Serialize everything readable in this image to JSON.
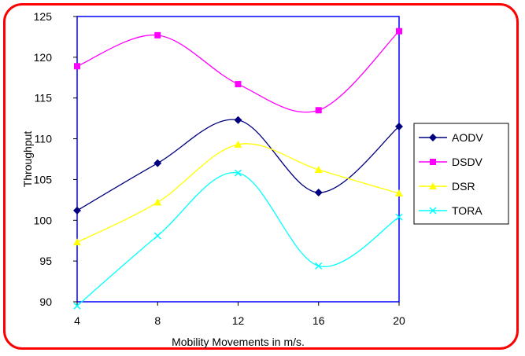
{
  "chart_data": {
    "type": "line",
    "title": "",
    "xlabel": "Mobility Movements in m/s.",
    "ylabel": "Throughput",
    "x": [
      4,
      8,
      12,
      16,
      20
    ],
    "xlim": [
      4,
      20
    ],
    "ylim": [
      90,
      125
    ],
    "yticks": [
      90,
      95,
      100,
      105,
      110,
      115,
      120,
      125
    ],
    "grid": false,
    "legend_position": "right",
    "series": [
      {
        "name": "AODV",
        "color": "#000080",
        "marker": "diamond",
        "values": [
          101.2,
          107.0,
          112.3,
          103.4,
          111.5
        ]
      },
      {
        "name": "DSDV",
        "color": "#ff00ff",
        "marker": "square",
        "values": [
          118.9,
          122.7,
          116.7,
          113.5,
          123.2
        ]
      },
      {
        "name": "DSR",
        "color": "#ffff00",
        "marker": "triangle",
        "values": [
          97.3,
          102.2,
          109.3,
          106.2,
          103.3
        ]
      },
      {
        "name": "TORA",
        "color": "#00ffff",
        "marker": "x",
        "values": [
          89.5,
          98.1,
          105.8,
          94.4,
          100.4
        ]
      }
    ]
  }
}
